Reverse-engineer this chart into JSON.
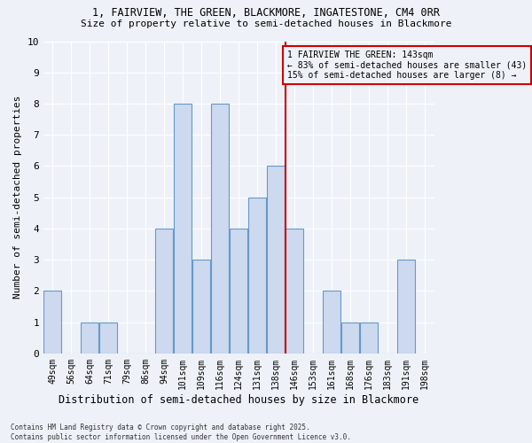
{
  "title1": "1, FAIRVIEW, THE GREEN, BLACKMORE, INGATESTONE, CM4 0RR",
  "title2": "Size of property relative to semi-detached houses in Blackmore",
  "xlabel": "Distribution of semi-detached houses by size in Blackmore",
  "ylabel": "Number of semi-detached properties",
  "bins": [
    49,
    56,
    64,
    71,
    79,
    86,
    94,
    101,
    109,
    116,
    124,
    131,
    138,
    146,
    153,
    161,
    168,
    176,
    183,
    191,
    198
  ],
  "counts": [
    2,
    0,
    1,
    1,
    0,
    0,
    4,
    8,
    3,
    8,
    4,
    5,
    6,
    4,
    0,
    2,
    1,
    1,
    0,
    3
  ],
  "bar_color": "#ccd9ee",
  "bar_edge_color": "#6699cc",
  "vline_x": 7.5,
  "vline_color": "#cc0000",
  "annotation_title": "1 FAIRVIEW THE GREEN: 143sqm",
  "annotation_line1": "← 83% of semi-detached houses are smaller (43)",
  "annotation_line2": "15% of semi-detached houses are larger (8) →",
  "annotation_box_color": "#cc0000",
  "ylim": [
    0,
    10
  ],
  "yticks": [
    0,
    1,
    2,
    3,
    4,
    5,
    6,
    7,
    8,
    9,
    10
  ],
  "footer1": "Contains HM Land Registry data © Crown copyright and database right 2025.",
  "footer2": "Contains public sector information licensed under the Open Government Licence v3.0.",
  "bg_color": "#eef2f8"
}
